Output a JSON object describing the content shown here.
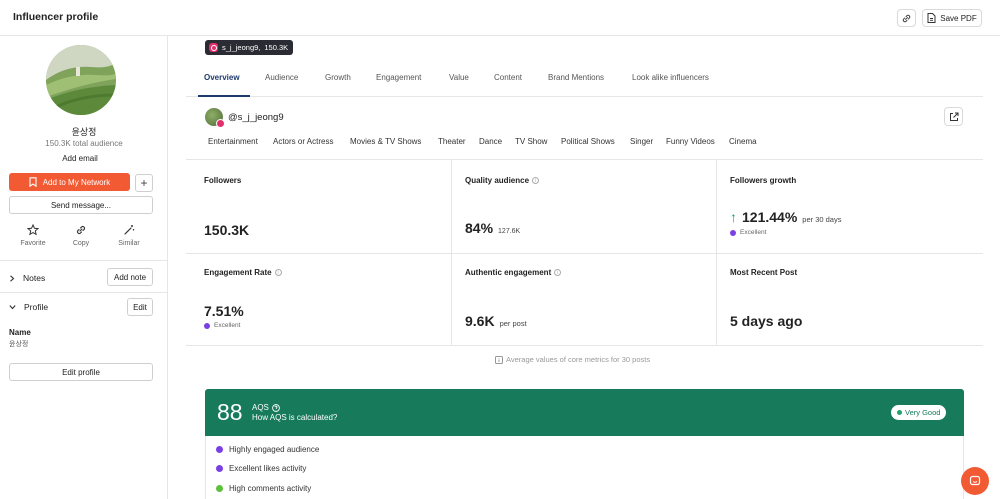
{
  "header": {
    "title": "Influencer profile",
    "save_pdf": "Save PDF"
  },
  "sidebar": {
    "name": "윤상정",
    "audience": "150.3K total audience",
    "add_email": "Add email",
    "add_network": "Add to My Network",
    "send_message": "Send message...",
    "actions": [
      {
        "label": "Favorite",
        "icon": "star-icon"
      },
      {
        "label": "Copy",
        "icon": "link-icon"
      },
      {
        "label": "Similar",
        "icon": "magic-wand-icon"
      }
    ],
    "notes_label": "Notes",
    "add_note": "Add note",
    "profile_label": "Profile",
    "edit": "Edit",
    "field_name_label": "Name",
    "field_name_value": "윤상정",
    "edit_profile": "Edit profile"
  },
  "badge": {
    "handle": "s_j_jeong9,",
    "followers": "150.3K"
  },
  "tabs": [
    "Overview",
    "Audience",
    "Growth",
    "Engagement",
    "Value",
    "Content",
    "Brand Mentions",
    "Look alike influencers"
  ],
  "profile": {
    "handle": "@s_j_jeong9",
    "categories": [
      "Entertainment",
      "Actors or Actress",
      "Movies & TV Shows",
      "Theater",
      "Dance",
      "TV Show",
      "Political Shows",
      "Singer",
      "Funny Videos",
      "Cinema"
    ]
  },
  "metrics": {
    "followers": {
      "label": "Followers",
      "value": "150.3K"
    },
    "quality": {
      "label": "Quality audience",
      "value": "84%",
      "sub": "127.6K"
    },
    "growth": {
      "label": "Followers growth",
      "value": "121.44%",
      "sub": "per 30 days",
      "tag": "Excellent"
    },
    "engagement": {
      "label": "Engagement Rate",
      "value": "7.51%",
      "tag": "Excellent"
    },
    "authentic": {
      "label": "Authentic engagement",
      "value": "9.6K",
      "sub": "per post"
    },
    "recent": {
      "label": "Most Recent Post",
      "value": "5 days ago"
    }
  },
  "note": "Average values of core metrics for 30 posts",
  "aqs": {
    "score": "88",
    "title": "AQS",
    "subtitle": "How AQS is calculated?",
    "badge": "Very Good",
    "items": [
      {
        "text": "Highly engaged audience",
        "color": "#7b3fe4"
      },
      {
        "text": "Excellent likes activity",
        "color": "#7b3fe4"
      },
      {
        "text": "High comments activity",
        "color": "#5ac13a"
      }
    ]
  },
  "colors": {
    "accent": "#f25a34",
    "aqs_green": "#167a5b",
    "tab_active": "#1f3a6e"
  }
}
